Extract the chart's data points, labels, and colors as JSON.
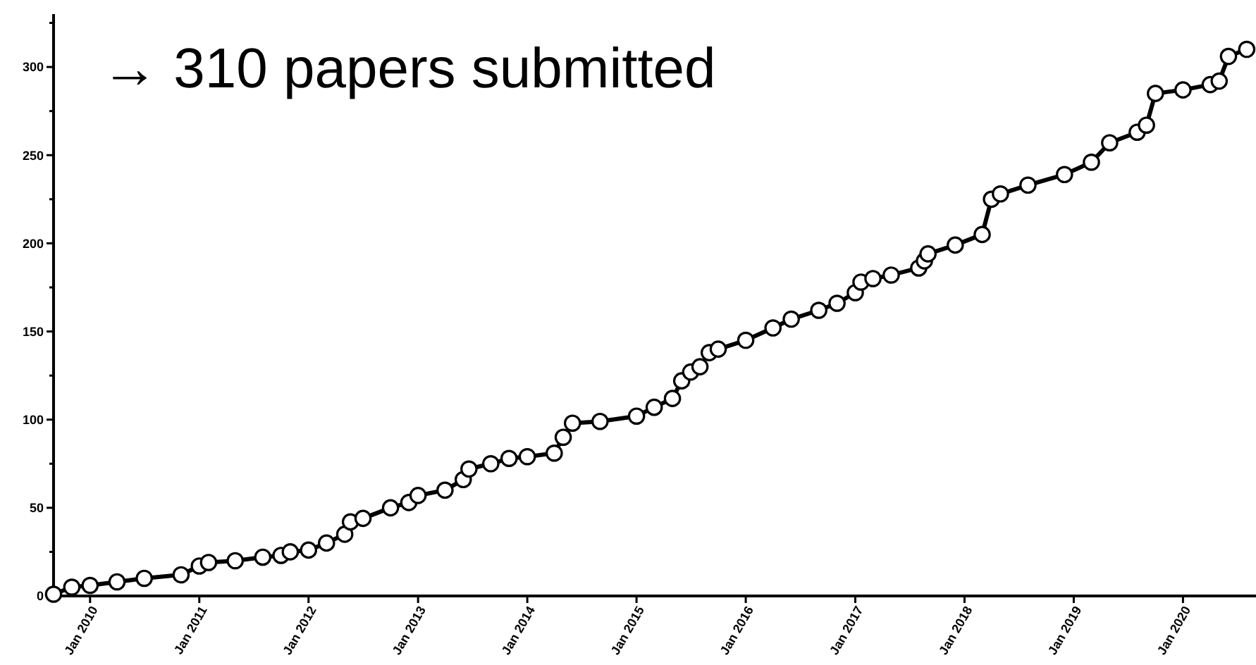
{
  "chart_data": {
    "type": "line",
    "title": "→ 310 papers submitted",
    "marker": "circle",
    "grid": false,
    "xlim": [
      "2009-09",
      "2020-09"
    ],
    "xticks": [
      {
        "value": "2010-01",
        "label": "Jan 2010"
      },
      {
        "value": "2011-01",
        "label": "Jan 2011"
      },
      {
        "value": "2012-01",
        "label": "Jan 2012"
      },
      {
        "value": "2013-01",
        "label": "Jan 2013"
      },
      {
        "value": "2014-01",
        "label": "Jan 2014"
      },
      {
        "value": "2015-01",
        "label": "Jan 2015"
      },
      {
        "value": "2016-01",
        "label": "Jan 2016"
      },
      {
        "value": "2017-01",
        "label": "Jan 2017"
      },
      {
        "value": "2018-01",
        "label": "Jan 2018"
      },
      {
        "value": "2019-01",
        "label": "Jan 2019"
      },
      {
        "value": "2020-01",
        "label": "Jan 2020"
      }
    ],
    "ylim": [
      0,
      330
    ],
    "yticks": [
      0,
      {
        "value": 25,
        "label": null
      },
      50,
      {
        "value": 75,
        "label": null
      },
      100,
      {
        "value": 125,
        "label": null
      },
      150,
      {
        "value": 175,
        "label": null
      },
      200,
      {
        "value": 225,
        "label": null
      },
      250,
      {
        "value": 275,
        "label": null
      },
      300,
      {
        "value": 325,
        "label": null
      }
    ],
    "x": [
      "2009-09",
      "2009-11",
      "2010-01",
      "2010-04",
      "2010-07",
      "2010-11",
      "2011-01",
      "2011-02",
      "2011-05",
      "2011-08",
      "2011-10",
      "2011-11",
      "2012-01",
      "2012-03",
      "2012-05",
      "2012-05-20",
      "2012-07",
      "2012-10",
      "2012-12",
      "2013-01",
      "2013-04",
      "2013-06",
      "2013-06-20",
      "2013-09",
      "2013-11",
      "2014-01",
      "2014-04",
      "2014-05",
      "2014-06",
      "2014-09",
      "2015-01",
      "2015-03",
      "2015-05",
      "2015-06",
      "2015-07",
      "2015-08",
      "2015-09",
      "2015-10",
      "2016-01",
      "2016-04",
      "2016-06",
      "2016-09",
      "2016-11",
      "2017-01",
      "2017-01-20",
      "2017-03",
      "2017-05",
      "2017-08",
      "2017-08-20",
      "2017-09",
      "2017-12",
      "2018-03",
      "2018-04",
      "2018-05",
      "2018-08",
      "2018-12",
      "2019-03",
      "2019-05",
      "2019-08",
      "2019-09",
      "2019-10",
      "2020-01",
      "2020-04",
      "2020-05",
      "2020-06",
      "2020-08"
    ],
    "series": [
      {
        "color": "#000000",
        "values": [
          1,
          5,
          6,
          8,
          10,
          12,
          17,
          19,
          20,
          22,
          23,
          25,
          26,
          30,
          35,
          42,
          44,
          50,
          53,
          57,
          60,
          66,
          72,
          75,
          78,
          79,
          81,
          90,
          98,
          99,
          102,
          107,
          112,
          122,
          127,
          130,
          138,
          140,
          145,
          152,
          157,
          162,
          166,
          172,
          178,
          180,
          182,
          186,
          190,
          194,
          199,
          205,
          225,
          228,
          233,
          239,
          246,
          257,
          263,
          267,
          285,
          287,
          290,
          292,
          306,
          310
        ]
      }
    ]
  }
}
